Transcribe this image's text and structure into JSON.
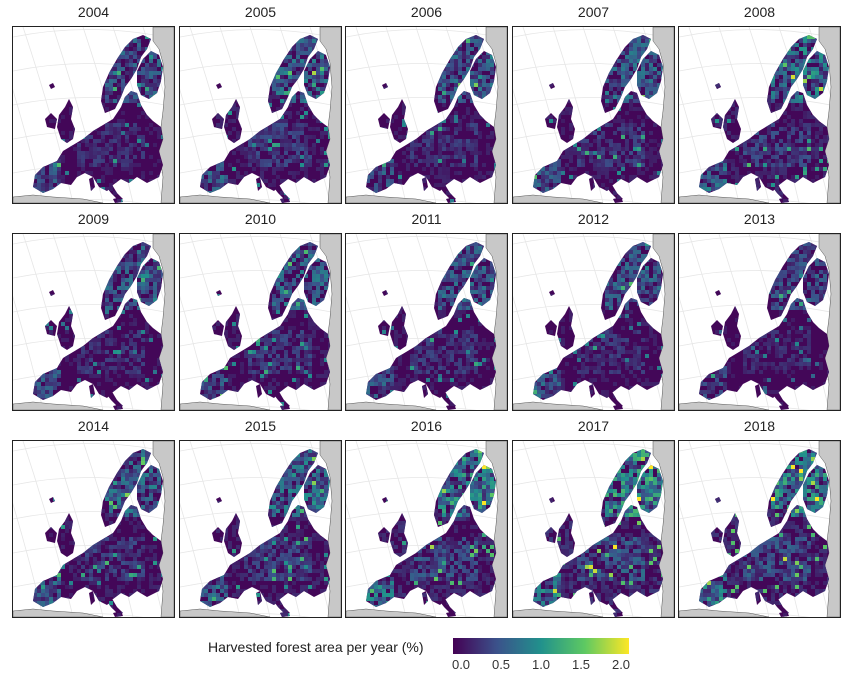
{
  "panels": [
    {
      "year": "2004",
      "level": 0.35
    },
    {
      "year": "2005",
      "level": 0.42
    },
    {
      "year": "2006",
      "level": 0.38
    },
    {
      "year": "2007",
      "level": 0.4
    },
    {
      "year": "2008",
      "level": 0.48
    },
    {
      "year": "2009",
      "level": 0.36
    },
    {
      "year": "2010",
      "level": 0.4
    },
    {
      "year": "2011",
      "level": 0.38
    },
    {
      "year": "2012",
      "level": 0.36
    },
    {
      "year": "2013",
      "level": 0.3
    },
    {
      "year": "2014",
      "level": 0.42
    },
    {
      "year": "2015",
      "level": 0.45
    },
    {
      "year": "2016",
      "level": 0.55
    },
    {
      "year": "2017",
      "level": 0.62
    },
    {
      "year": "2018",
      "level": 0.58
    }
  ],
  "legend": {
    "title": "Harvested forest area per year (%)",
    "ticks": [
      "0.0",
      "0.5",
      "1.0",
      "1.5",
      "2.0"
    ],
    "range": [
      0,
      2
    ],
    "colors": [
      "#440154",
      "#3b528b",
      "#21918c",
      "#5ec962",
      "#fde725"
    ]
  },
  "map_colors": {
    "land_outside": "#c8c8c8",
    "graticule": "#e6e6e6",
    "border": "#222222"
  }
}
